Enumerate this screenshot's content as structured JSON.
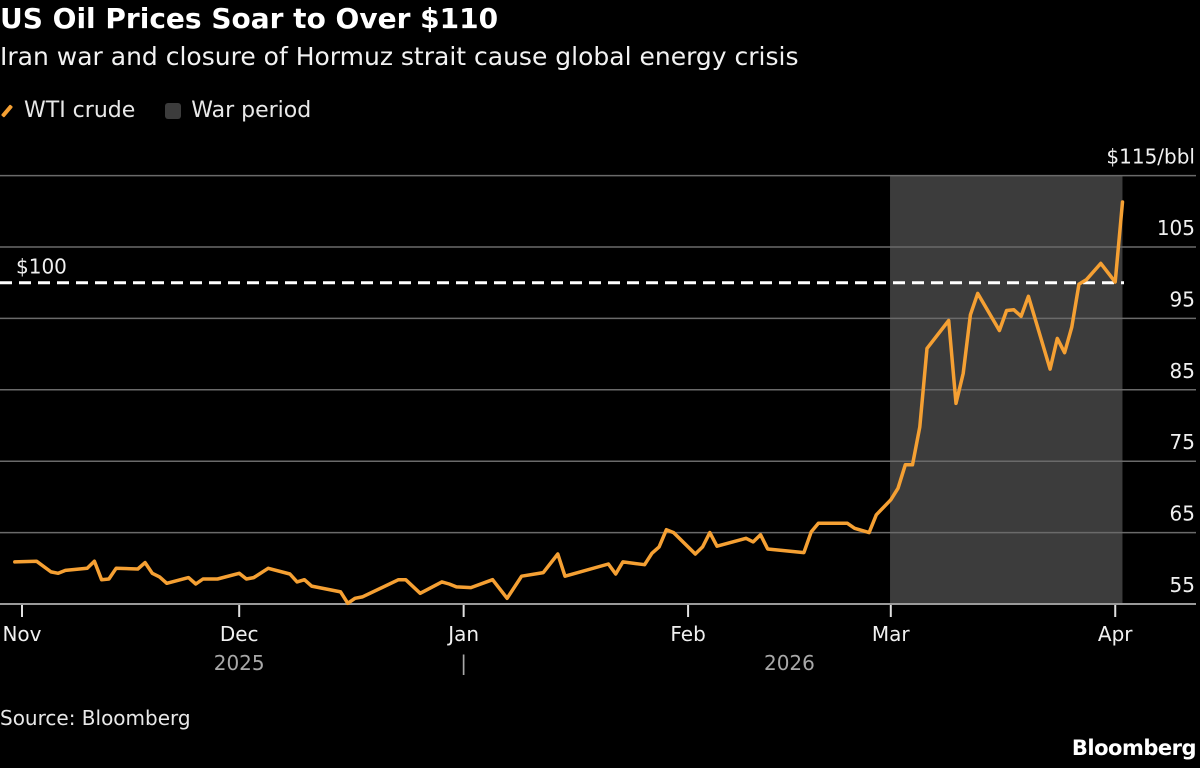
{
  "title": "US Oil Prices Soar to Over $110",
  "subtitle": "Iran war and closure of Hormuz strait cause global energy crisis",
  "legend": [
    {
      "label": "WTI crude",
      "type": "line",
      "color": "#f5a033"
    },
    {
      "label": "War period",
      "type": "box",
      "color": "#3c3c3c"
    }
  ],
  "source": "Source: Bloomberg",
  "logo": "Bloomberg",
  "chart_data": {
    "type": "line",
    "title": "US Oil Prices Soar to Over $110",
    "ylabel": "",
    "xlabel": "",
    "y_unit_label": "$115/bbl",
    "ylim": [
      55,
      115
    ],
    "yticks": [
      55,
      65,
      75,
      85,
      95,
      105,
      115
    ],
    "ytick_labels": [
      "55",
      "65",
      "75",
      "85",
      "95",
      "105",
      "$115/bbl"
    ],
    "xlim": [
      "2025-10-31",
      "2026-04-08"
    ],
    "xticks": [
      {
        "date": "2025-11-01",
        "label": "Nov"
      },
      {
        "date": "2025-12-01",
        "label": "Dec"
      },
      {
        "date": "2026-01-01",
        "label": "Jan"
      },
      {
        "date": "2026-02-01",
        "label": "Feb"
      },
      {
        "date": "2026-03-01",
        "label": "Mar"
      },
      {
        "date": "2026-04-01",
        "label": "Apr"
      }
    ],
    "year_labels": [
      {
        "label": "2025",
        "center": "2025-12-01"
      },
      {
        "label": "|",
        "center": "2026-01-01"
      },
      {
        "label": "2026",
        "center": "2026-02-15"
      }
    ],
    "grid": true,
    "legend_position": "top-left",
    "reference_line": {
      "value": 100,
      "label": "$100",
      "style": "dashed",
      "color": "#ffffff"
    },
    "shaded_region": {
      "name": "War period",
      "start": "2026-03-02",
      "end": "2026-04-02",
      "color": "#3c3c3c"
    },
    "series": [
      {
        "name": "WTI crude",
        "color": "#f5a033",
        "points": [
          [
            "2025-10-31",
            60.9
          ],
          [
            "2025-11-03",
            61.0
          ],
          [
            "2025-11-05",
            59.5
          ],
          [
            "2025-11-06",
            59.3
          ],
          [
            "2025-11-07",
            59.7
          ],
          [
            "2025-11-10",
            60.0
          ],
          [
            "2025-11-11",
            61.0
          ],
          [
            "2025-11-12",
            58.4
          ],
          [
            "2025-11-13",
            58.5
          ],
          [
            "2025-11-14",
            60.0
          ],
          [
            "2025-11-17",
            59.9
          ],
          [
            "2025-11-18",
            60.8
          ],
          [
            "2025-11-19",
            59.3
          ],
          [
            "2025-11-20",
            58.8
          ],
          [
            "2025-11-21",
            57.9
          ],
          [
            "2025-11-24",
            58.7
          ],
          [
            "2025-11-25",
            57.8
          ],
          [
            "2025-11-26",
            58.5
          ],
          [
            "2025-11-28",
            58.5
          ],
          [
            "2025-12-01",
            59.3
          ],
          [
            "2025-12-02",
            58.5
          ],
          [
            "2025-12-03",
            58.7
          ],
          [
            "2025-12-05",
            60.0
          ],
          [
            "2025-12-08",
            59.2
          ],
          [
            "2025-12-09",
            58.1
          ],
          [
            "2025-12-10",
            58.4
          ],
          [
            "2025-12-11",
            57.5
          ],
          [
            "2025-12-15",
            56.7
          ],
          [
            "2025-12-16",
            55.1
          ],
          [
            "2025-12-17",
            55.8
          ],
          [
            "2025-12-18",
            56.0
          ],
          [
            "2025-12-23",
            58.4
          ],
          [
            "2025-12-24",
            58.4
          ],
          [
            "2025-12-26",
            56.5
          ],
          [
            "2025-12-29",
            58.1
          ],
          [
            "2025-12-30",
            57.8
          ],
          [
            "2025-12-31",
            57.4
          ],
          [
            "2026-01-02",
            57.3
          ],
          [
            "2026-01-05",
            58.4
          ],
          [
            "2026-01-07",
            55.8
          ],
          [
            "2026-01-09",
            58.9
          ],
          [
            "2026-01-12",
            59.4
          ],
          [
            "2026-01-14",
            62.0
          ],
          [
            "2026-01-15",
            58.9
          ],
          [
            "2026-01-21",
            60.6
          ],
          [
            "2026-01-22",
            59.2
          ],
          [
            "2026-01-23",
            60.9
          ],
          [
            "2026-01-26",
            60.5
          ],
          [
            "2026-01-27",
            62.1
          ],
          [
            "2026-01-28",
            63.0
          ],
          [
            "2026-01-29",
            65.4
          ],
          [
            "2026-01-30",
            65.0
          ],
          [
            "2026-02-02",
            62.0
          ],
          [
            "2026-02-03",
            63.0
          ],
          [
            "2026-02-04",
            65.0
          ],
          [
            "2026-02-05",
            63.1
          ],
          [
            "2026-02-09",
            64.2
          ],
          [
            "2026-02-10",
            63.7
          ],
          [
            "2026-02-11",
            64.7
          ],
          [
            "2026-02-12",
            62.7
          ],
          [
            "2026-02-17",
            62.2
          ],
          [
            "2026-02-18",
            65.1
          ],
          [
            "2026-02-19",
            66.3
          ],
          [
            "2026-02-23",
            66.3
          ],
          [
            "2026-02-24",
            65.6
          ],
          [
            "2026-02-26",
            65.0
          ],
          [
            "2026-02-27",
            67.5
          ],
          [
            "2026-03-01",
            69.6
          ],
          [
            "2026-03-02",
            71.2
          ],
          [
            "2026-03-03",
            74.5
          ],
          [
            "2026-03-04",
            74.5
          ],
          [
            "2026-03-05",
            79.8
          ],
          [
            "2026-03-06",
            90.8
          ],
          [
            "2026-03-09",
            94.7
          ],
          [
            "2026-03-10",
            83.1
          ],
          [
            "2026-03-11",
            87.3
          ],
          [
            "2026-03-12",
            95.5
          ],
          [
            "2026-03-13",
            98.5
          ],
          [
            "2026-03-16",
            93.3
          ],
          [
            "2026-03-17",
            96.1
          ],
          [
            "2026-03-18",
            96.2
          ],
          [
            "2026-03-19",
            95.3
          ],
          [
            "2026-03-20",
            98.1
          ],
          [
            "2026-03-23",
            87.9
          ],
          [
            "2026-03-24",
            92.2
          ],
          [
            "2026-03-25",
            90.2
          ],
          [
            "2026-03-26",
            93.8
          ],
          [
            "2026-03-27",
            99.8
          ],
          [
            "2026-03-28",
            100.4
          ],
          [
            "2026-03-30",
            102.7
          ],
          [
            "2026-04-01",
            100.1
          ],
          [
            "2026-04-02",
            111.3
          ]
        ]
      }
    ]
  }
}
